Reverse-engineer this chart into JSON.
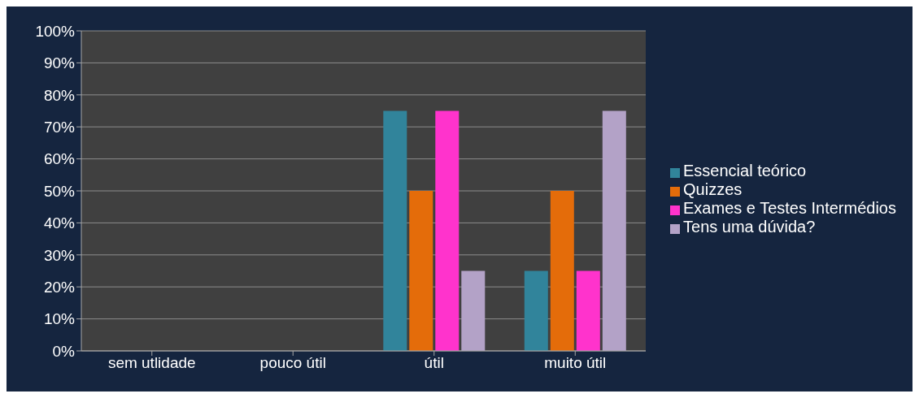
{
  "chart_data": {
    "type": "bar",
    "categories": [
      "sem utlidade",
      "pouco útil",
      "útil",
      "muito útil"
    ],
    "series": [
      {
        "name": "Essencial teórico",
        "color": "#31849b",
        "values": [
          0,
          0,
          75,
          25
        ]
      },
      {
        "name": "Quizzes",
        "color": "#e46c0a",
        "values": [
          0,
          0,
          50,
          50
        ]
      },
      {
        "name": "Exames e Testes Intermédios",
        "color": "#ff33cc",
        "values": [
          0,
          0,
          75,
          25
        ]
      },
      {
        "name": "Tens uma dúvida?",
        "color": "#b3a2c7",
        "values": [
          0,
          0,
          25,
          75
        ]
      }
    ],
    "ylim": [
      0,
      100
    ],
    "yticks": [
      {
        "value": 0,
        "label": "0%"
      },
      {
        "value": 10,
        "label": "10%"
      },
      {
        "value": 20,
        "label": "20%"
      },
      {
        "value": 30,
        "label": "30%"
      },
      {
        "value": 40,
        "label": "40%"
      },
      {
        "value": 50,
        "label": "50%"
      },
      {
        "value": 60,
        "label": "60%"
      },
      {
        "value": 70,
        "label": "70%"
      },
      {
        "value": 80,
        "label": "80%"
      },
      {
        "value": 90,
        "label": "90%"
      },
      {
        "value": 100,
        "label": "100%"
      }
    ],
    "grid": "y",
    "legend": "right"
  }
}
